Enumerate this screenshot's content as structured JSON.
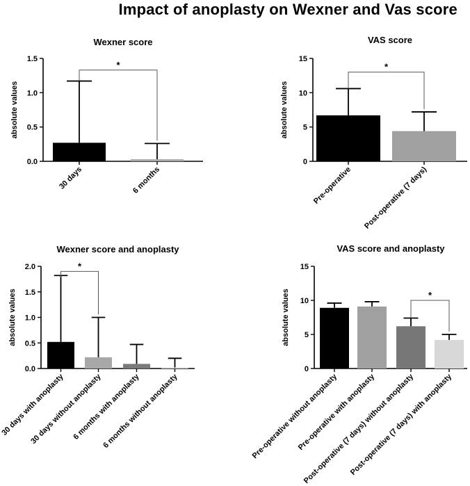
{
  "figure": {
    "title": "Impact of anoplasty on Wexner and Vas score"
  },
  "chart_data": [
    {
      "type": "bar",
      "title": "Wexner score",
      "ylabel": "absolute values",
      "xlabel": "",
      "ylim": [
        0,
        1.5
      ],
      "yticks": [
        0,
        0.5,
        1.0,
        1.5
      ],
      "ytick_labels": [
        "0.0",
        "0.5",
        "1.0",
        "1.5"
      ],
      "categories": [
        "30 days",
        "6 months"
      ],
      "values": [
        0.27,
        0.03
      ],
      "errors": [
        0.9,
        0.23
      ],
      "colors": [
        "#000000",
        "#a8a8a8"
      ],
      "significance": [
        {
          "from": 0,
          "to": 1,
          "label": "*",
          "y": 1.33
        }
      ]
    },
    {
      "type": "bar",
      "title": "VAS score",
      "ylabel": "absolute values",
      "xlabel": "",
      "ylim": [
        0,
        15
      ],
      "yticks": [
        0,
        5,
        10,
        15
      ],
      "ytick_labels": [
        "0",
        "5",
        "10",
        "15"
      ],
      "categories": [
        "Pre-operative",
        "Post-operative (7 days)"
      ],
      "values": [
        6.7,
        4.4
      ],
      "errors": [
        3.9,
        2.8
      ],
      "colors": [
        "#000000",
        "#a0a0a0"
      ],
      "significance": [
        {
          "from": 0,
          "to": 1,
          "label": "*",
          "y": 13.0
        }
      ]
    },
    {
      "type": "bar",
      "title": "Wexner score and anoplasty",
      "ylabel": "absolute values",
      "xlabel": "",
      "ylim": [
        0,
        2.0
      ],
      "yticks": [
        0,
        0.5,
        1.0,
        1.5,
        2.0
      ],
      "ytick_labels": [
        "0.0",
        "0.5",
        "1.0",
        "1.5",
        "2.0"
      ],
      "categories": [
        "30 days with anoplasty",
        "30 days without anoplasty",
        "6 months with anoplasty",
        "6 months without anoplasty"
      ],
      "values": [
        0.52,
        0.22,
        0.09,
        0.02
      ],
      "errors": [
        1.3,
        0.78,
        0.38,
        0.18
      ],
      "colors": [
        "#000000",
        "#a8a8a8",
        "#7a7a7a",
        "#d8d8d8"
      ],
      "significance": [
        {
          "from": 0,
          "to": 1,
          "label": "*",
          "y": 1.9
        }
      ]
    },
    {
      "type": "bar",
      "title": "VAS score and anoplasty",
      "ylabel": "absolute values",
      "xlabel": "",
      "ylim": [
        0,
        15
      ],
      "yticks": [
        0,
        5,
        10,
        15
      ],
      "ytick_labels": [
        "0",
        "5",
        "10",
        "15"
      ],
      "categories": [
        "Pre-operative without anoplasty",
        "Pre-operative with anoplasty",
        "Post-operative (7 days) without anoplasty",
        "Post-operative (7 days) with anoplasty"
      ],
      "values": [
        8.9,
        9.1,
        6.2,
        4.2
      ],
      "errors": [
        0.7,
        0.7,
        1.2,
        0.8
      ],
      "colors": [
        "#000000",
        "#a0a0a0",
        "#777777",
        "#d8d8d8"
      ],
      "significance": [
        {
          "from": 2,
          "to": 3,
          "label": "*",
          "y": 10.0
        }
      ]
    }
  ]
}
